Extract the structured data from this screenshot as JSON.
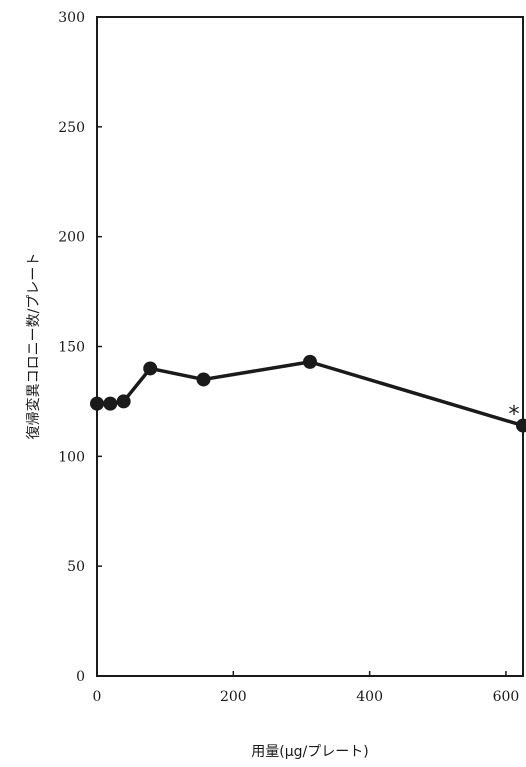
{
  "chart_data": {
    "type": "line",
    "title": "",
    "xlabel": "用量(μg/プレート)",
    "ylabel": "復帰変異コロニー数/プレート",
    "xlim": [
      0,
      625
    ],
    "ylim": [
      0,
      300
    ],
    "xticks": [
      0,
      200,
      400,
      600
    ],
    "yticks": [
      0,
      50,
      100,
      150,
      200,
      250,
      300
    ],
    "grid": false,
    "series": [
      {
        "x": [
          0,
          19.5,
          39.1,
          78.1,
          156.3,
          312.5,
          625
        ],
        "y": [
          124,
          124,
          125,
          140,
          135,
          143,
          114
        ]
      }
    ],
    "annotations": [
      {
        "text": "*",
        "x": 625,
        "y": 114
      }
    ],
    "colors": {
      "line": "#1a1a1a",
      "marker": "#1a1a1a",
      "frame": "#1a1a1a"
    }
  }
}
